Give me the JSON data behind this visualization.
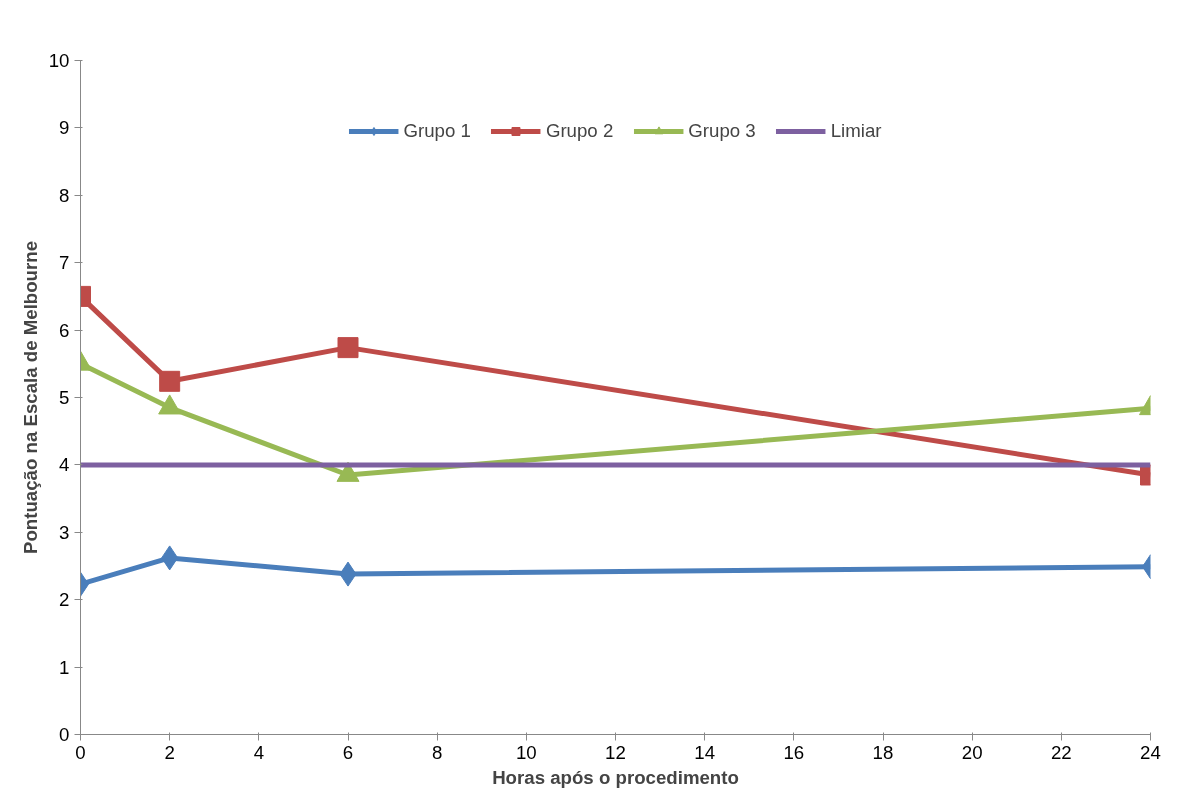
{
  "chart_data": {
    "type": "line",
    "xlabel": "Horas após o procedimento",
    "ylabel": "Pontuação na Escala de Melbourne",
    "x": [
      0,
      2,
      6,
      24
    ],
    "series": [
      {
        "name": "Grupo 1",
        "color": "#4a7ebb",
        "marker": "diamond",
        "values": [
          2.23,
          2.62,
          2.38,
          2.49
        ]
      },
      {
        "name": "Grupo 2",
        "color": "#be4b48",
        "marker": "square",
        "values": [
          6.5,
          5.24,
          5.74,
          3.85
        ]
      },
      {
        "name": "Grupo 3",
        "color": "#98b954",
        "marker": "triangle",
        "values": [
          5.5,
          4.85,
          3.85,
          4.84
        ]
      },
      {
        "name": "Limiar",
        "color": "#7d60a0",
        "marker": "none",
        "x": [
          0,
          24
        ],
        "values": [
          4,
          4
        ]
      }
    ],
    "xlim": [
      0,
      24
    ],
    "ylim": [
      0,
      10
    ],
    "xticks": [
      0,
      2,
      4,
      6,
      8,
      10,
      12,
      14,
      16,
      18,
      20,
      22,
      24
    ],
    "yticks": [
      0,
      1,
      2,
      3,
      4,
      5,
      6,
      7,
      8,
      9,
      10
    ],
    "grid": false,
    "legend": "top"
  }
}
